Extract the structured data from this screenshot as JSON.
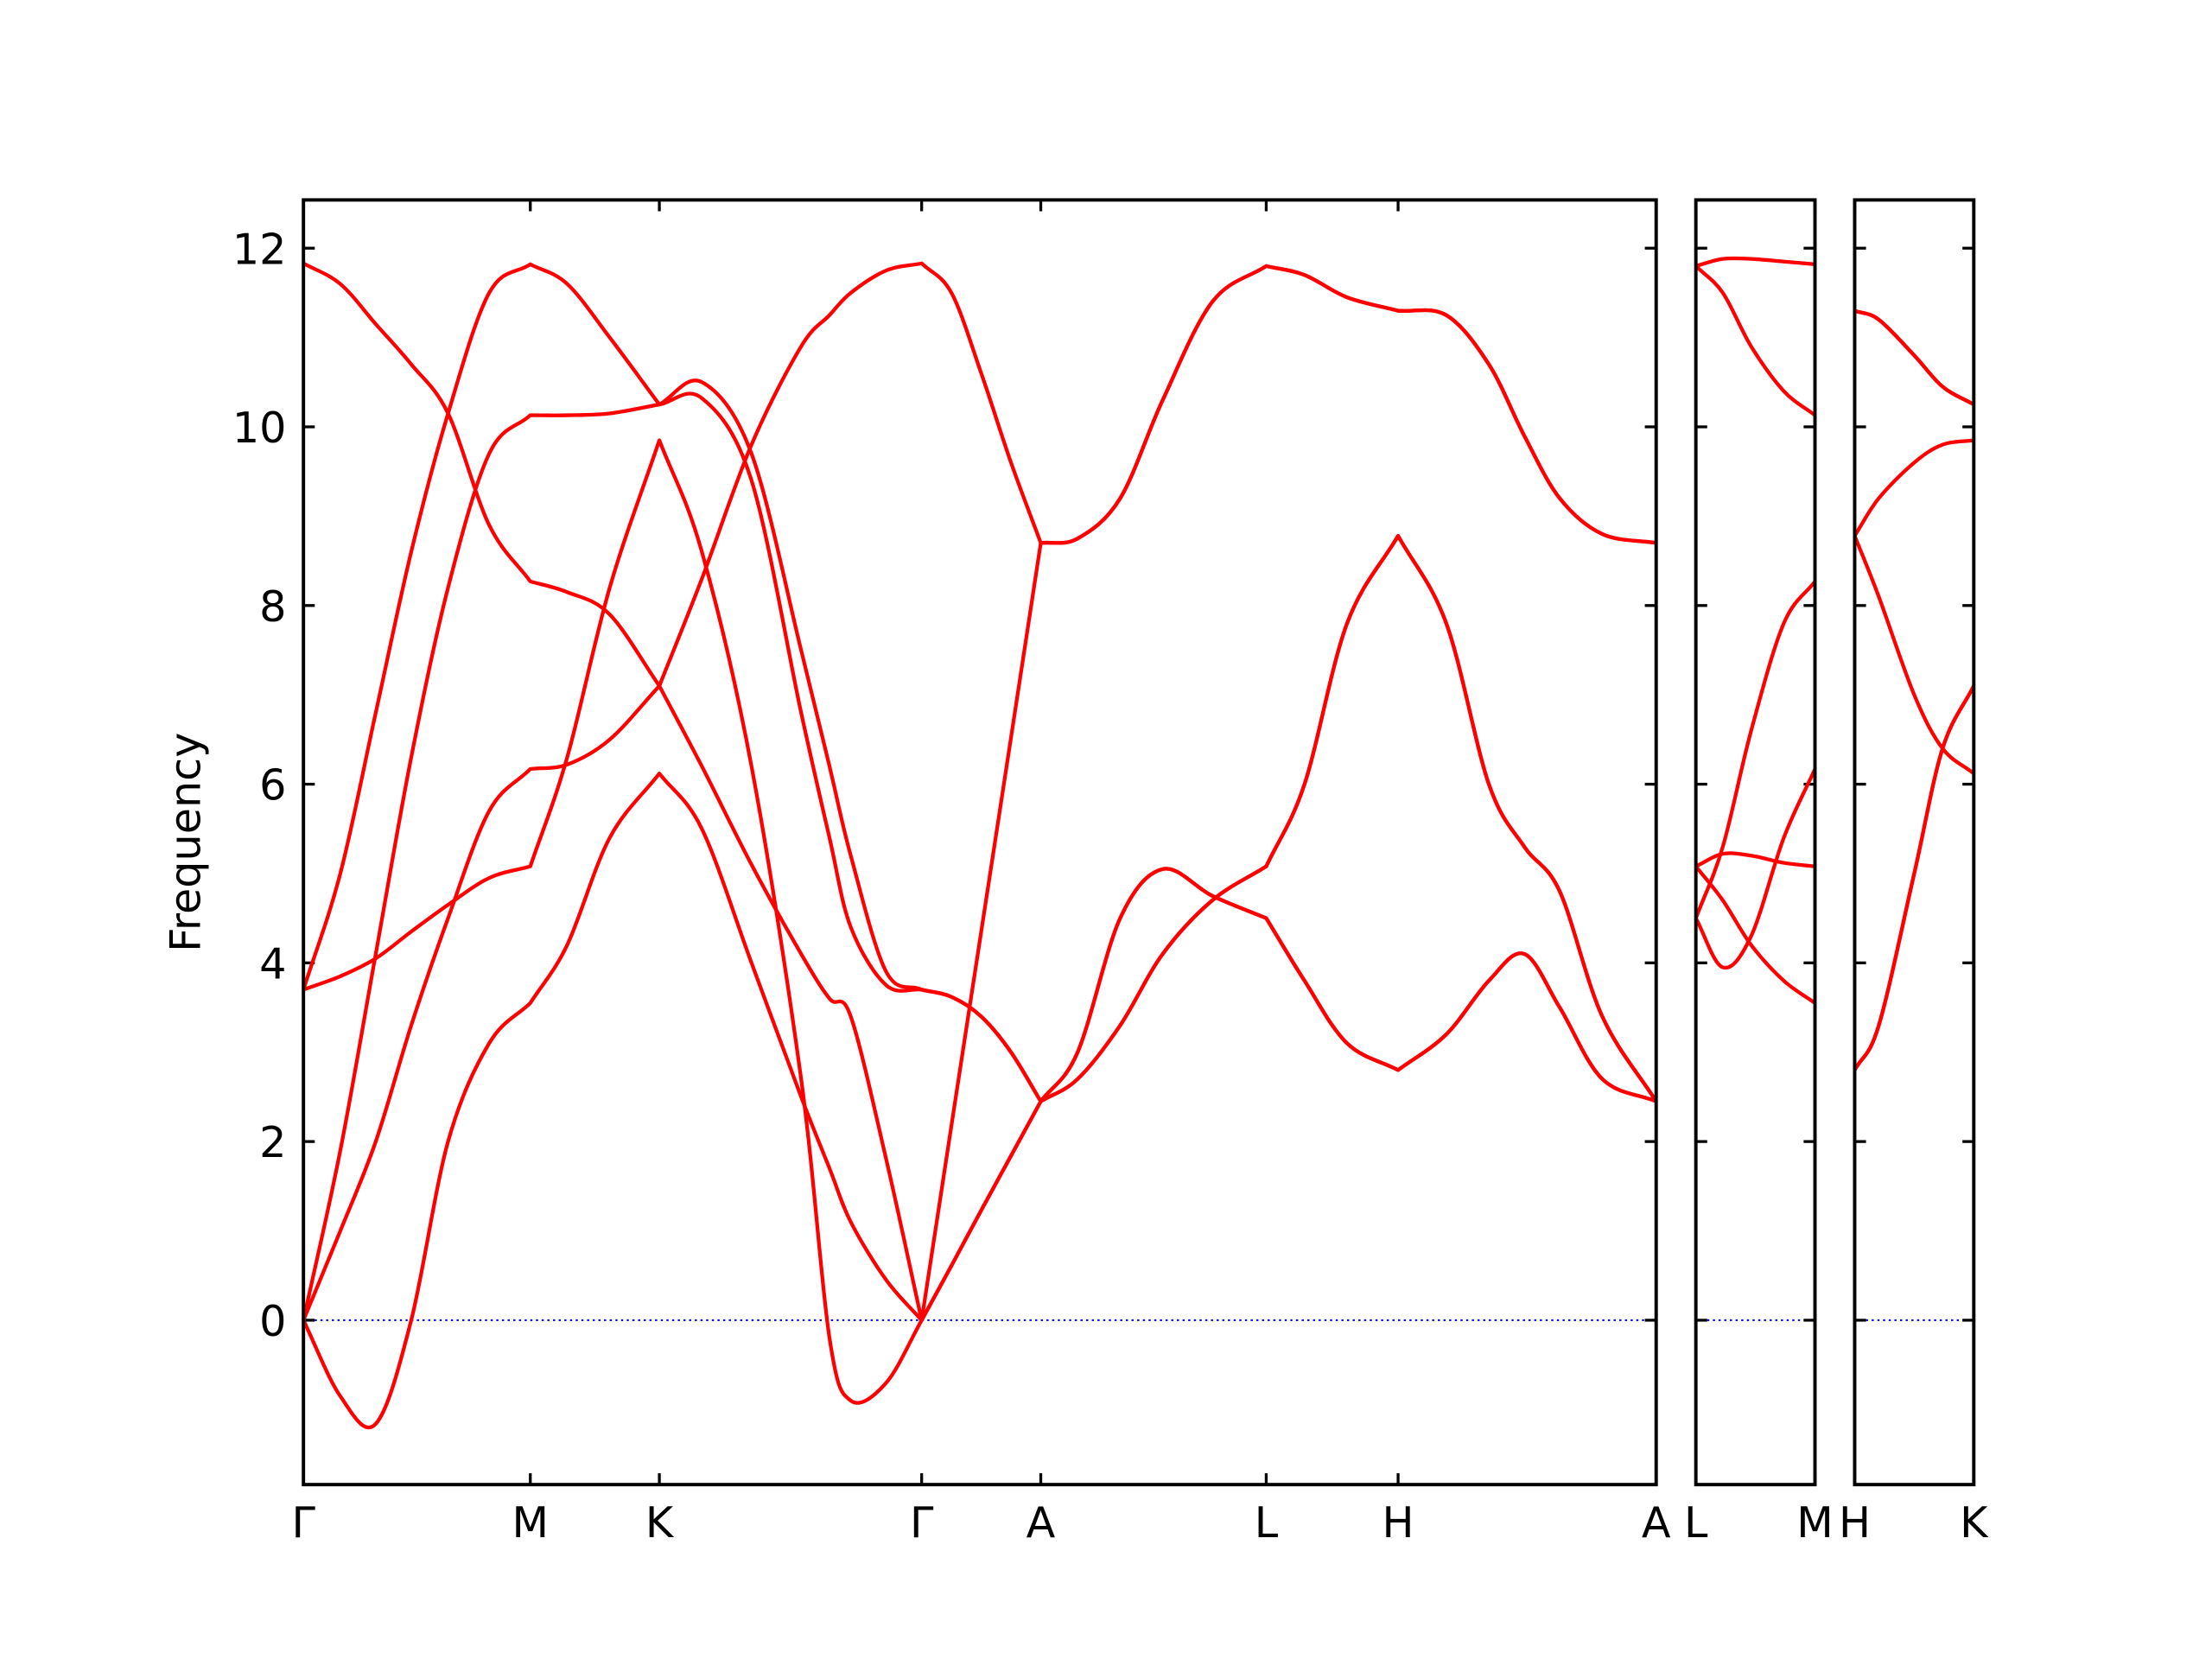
{
  "chart_data": [
    {
      "type": "line",
      "ylabel": "Frequency",
      "x": [
        0,
        0.26,
        0.51,
        0.76,
        1.02,
        1.31,
        1.6,
        1.86,
        2.16,
        2.51,
        2.81,
        3.16,
        3.51,
        3.71,
        3.86,
        4.11,
        4.36,
        4.57,
        4.78,
        4.99,
        5.2,
        5.46,
        5.76,
        6.06,
        6.41,
        6.79,
        7.06,
        7.36,
        7.72,
        8.06,
        8.36,
        8.61,
        8.86,
        9.16,
        9.54
      ],
      "series": [
        {
          "color": "#ff0000",
          "values": [
            3.7,
            5.0,
            6.8,
            8.6,
            10.15,
            11.5,
            11.82,
            11.6,
            11.0,
            10.25,
            10.5,
            9.7,
            7.5,
            6.2,
            5.2,
            3.9,
            3.7,
            3.62,
            3.4,
            3.0,
            2.45,
            3.0,
            4.5,
            5.05,
            4.75,
            4.5,
            3.8,
            3.1,
            2.8,
            3.2,
            3.8,
            4.1,
            3.5,
            2.7,
            2.45
          ]
        },
        {
          "color": "#ff0000",
          "values": [
            0,
            1.9,
            4.1,
            6.3,
            8.2,
            9.7,
            10.13,
            10.13,
            10.15,
            10.25,
            10.32,
            9.4,
            6.8,
            5.4,
            4.4,
            3.75,
            3.7,
            3.62,
            3.4,
            3.0,
            2.45,
            2.7,
            3.3,
            4.1,
            4.7,
            5.08,
            6.0,
            7.8,
            8.78,
            7.8,
            6.0,
            5.3,
            4.8,
            3.4,
            2.45
          ]
        },
        {
          "color": "#ff0000",
          "values": [
            11.83,
            11.6,
            11.15,
            10.7,
            10.15,
            8.9,
            8.27,
            8.15,
            7.9,
            7.1,
            8.3,
            9.8,
            10.9,
            11.25,
            11.5,
            11.75,
            11.83,
            11.5,
            10.6,
            9.6,
            8.7,
            8.75,
            9.2,
            10.3,
            11.4,
            11.8,
            11.7,
            11.45,
            11.3,
            11.25,
            10.7,
            9.9,
            9.2,
            8.8,
            8.7
          ]
        },
        {
          "color": "#ff0000",
          "values": [
            0,
            1.0,
            2.0,
            3.3,
            4.5,
            5.7,
            6.17,
            6.22,
            6.5,
            7.1,
            6.2,
            5.1,
            4.1,
            3.6,
            3.4,
            1.8,
            0,
            0.61,
            1.23,
            1.84,
            2.45,
            3.0,
            4.5,
            5.05,
            4.75,
            4.5,
            3.8,
            3.1,
            2.8,
            3.2,
            3.8,
            4.1,
            3.5,
            2.7,
            2.45
          ]
        },
        {
          "color": "#ff0000",
          "values": [
            3.7,
            3.85,
            4.05,
            4.35,
            4.65,
            4.95,
            5.08,
            6.3,
            8.2,
            9.85,
            8.6,
            6.2,
            2.7,
            -0.2,
            -0.9,
            -0.7,
            0,
            2.18,
            4.35,
            6.52,
            8.7,
            8.75,
            9.2,
            10.3,
            11.4,
            11.8,
            11.7,
            11.45,
            11.3,
            11.25,
            10.7,
            9.9,
            9.2,
            8.8,
            8.7
          ]
        },
        {
          "color": "#ff0000",
          "values": [
            0,
            -0.85,
            -1.16,
            0.0,
            2.0,
            3.1,
            3.55,
            4.2,
            5.4,
            6.12,
            5.5,
            4.0,
            2.5,
            1.7,
            1.1,
            0.45,
            0,
            0.61,
            1.23,
            1.84,
            2.45,
            2.7,
            3.3,
            4.1,
            4.7,
            5.08,
            6.0,
            7.8,
            8.78,
            7.8,
            6.0,
            5.3,
            4.8,
            3.4,
            2.45
          ]
        }
      ],
      "xlim": [
        0,
        9.54
      ],
      "xticks": [
        {
          "value": 0,
          "label": "Γ"
        },
        {
          "value": 1.6,
          "label": "M"
        },
        {
          "value": 2.51,
          "label": "K"
        },
        {
          "value": 4.36,
          "label": "Γ"
        },
        {
          "value": 5.2,
          "label": "A"
        },
        {
          "value": 6.79,
          "label": "L"
        },
        {
          "value": 7.72,
          "label": "H"
        },
        {
          "value": 9.54,
          "label": "A"
        }
      ],
      "ylim": [
        -1.84,
        12.54
      ],
      "yticks": [
        0,
        2,
        4,
        6,
        8,
        10,
        12
      ],
      "zero_line": {
        "value": 0,
        "color": "#0000cd"
      }
    },
    {
      "type": "line",
      "x": [
        0,
        0.19,
        0.39,
        0.62,
        0.84
      ],
      "series": [
        {
          "color": "#ff0000",
          "values": [
            11.8,
            11.88,
            11.88,
            11.85,
            11.82
          ]
        },
        {
          "color": "#ff0000",
          "values": [
            11.8,
            11.5,
            10.9,
            10.4,
            10.13
          ]
        },
        {
          "color": "#ff0000",
          "values": [
            4.5,
            5.3,
            6.6,
            7.8,
            8.27
          ]
        },
        {
          "color": "#ff0000",
          "values": [
            4.5,
            3.95,
            4.3,
            5.4,
            6.17
          ]
        },
        {
          "color": "#ff0000",
          "values": [
            5.08,
            5.22,
            5.2,
            5.12,
            5.08
          ]
        },
        {
          "color": "#ff0000",
          "values": [
            5.08,
            4.7,
            4.2,
            3.8,
            3.55
          ]
        }
      ],
      "xlim": [
        0,
        0.84
      ],
      "xticks": [
        {
          "value": 0,
          "label": "L"
        },
        {
          "value": 0.84,
          "label": "M"
        }
      ],
      "ylim": [
        -1.84,
        12.54
      ],
      "yticks": [
        0,
        2,
        4,
        6,
        8,
        10,
        12
      ],
      "zero_line": {
        "value": 0,
        "color": "#0000cd"
      }
    },
    {
      "type": "line",
      "x": [
        0,
        0.17,
        0.42,
        0.62,
        0.84
      ],
      "series": [
        {
          "color": "#ff0000",
          "values": [
            11.3,
            11.2,
            10.8,
            10.45,
            10.25
          ]
        },
        {
          "color": "#ff0000",
          "values": [
            11.3,
            11.2,
            10.8,
            10.45,
            10.25
          ]
        },
        {
          "color": "#ff0000",
          "values": [
            8.78,
            9.2,
            9.6,
            9.8,
            9.85
          ]
        },
        {
          "color": "#ff0000",
          "values": [
            8.78,
            8.1,
            7.0,
            6.4,
            6.12
          ]
        },
        {
          "color": "#ff0000",
          "values": [
            2.8,
            3.3,
            5.0,
            6.4,
            7.1
          ]
        },
        {
          "color": "#ff0000",
          "values": [
            2.8,
            3.3,
            5.0,
            6.4,
            7.1
          ]
        }
      ],
      "xlim": [
        0,
        0.84
      ],
      "xticks": [
        {
          "value": 0,
          "label": "H"
        },
        {
          "value": 0.84,
          "label": "K"
        }
      ],
      "ylim": [
        -1.84,
        12.54
      ],
      "yticks": [
        0,
        2,
        4,
        6,
        8,
        10,
        12
      ],
      "zero_line": {
        "value": 0,
        "color": "#0000cd"
      }
    }
  ]
}
